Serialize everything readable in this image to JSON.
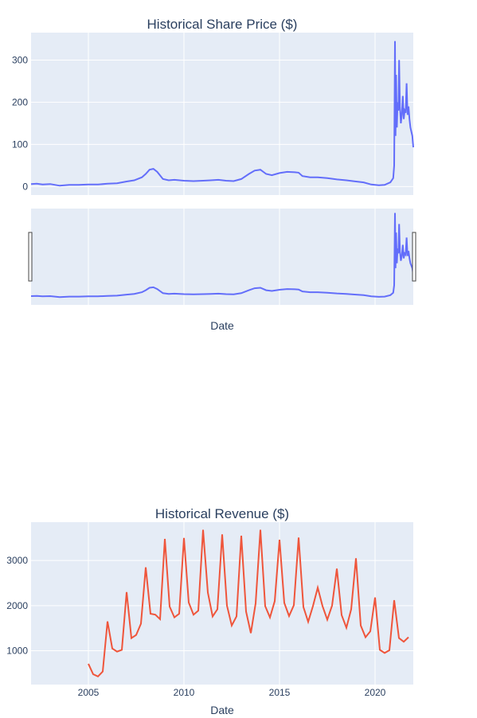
{
  "chart_data": [
    {
      "type": "line",
      "title": "Historical Share Price ($)",
      "xlabel": "Date",
      "ylabel": "",
      "xlim": [
        2002,
        2022
      ],
      "ylim": [
        -20,
        365
      ],
      "x_ticks": [
        2005,
        2010,
        2015,
        2020
      ],
      "y_ticks": [
        0,
        100,
        200,
        300
      ],
      "has_range_slider": true,
      "grid": true,
      "color": "#636efa",
      "series": [
        {
          "x": [
            2002.0,
            2002.3,
            2002.6,
            2003.0,
            2003.5,
            2004.0,
            2004.5,
            2005.0,
            2005.5,
            2006.0,
            2006.5,
            2007.0,
            2007.4,
            2007.8,
            2008.0,
            2008.2,
            2008.4,
            2008.6,
            2008.9,
            2009.2,
            2009.5,
            2010.0,
            2010.5,
            2011.0,
            2011.4,
            2011.8,
            2012.2,
            2012.6,
            2013.0,
            2013.4,
            2013.7,
            2014.0,
            2014.3,
            2014.6,
            2015.0,
            2015.4,
            2015.8,
            2016.0,
            2016.2,
            2016.6,
            2017.0,
            2017.5,
            2018.0,
            2018.5,
            2019.0,
            2019.4,
            2019.8,
            2020.2,
            2020.5,
            2020.8,
            2020.95,
            2021.0,
            2021.04,
            2021.07,
            2021.1,
            2021.14,
            2021.18,
            2021.22,
            2021.26,
            2021.3,
            2021.35,
            2021.4,
            2021.45,
            2021.5,
            2021.55,
            2021.6,
            2021.65,
            2021.7,
            2021.75,
            2021.8,
            2021.85,
            2021.9,
            2021.95,
            2022.0
          ],
          "values": [
            6,
            7,
            5,
            6,
            2,
            4,
            4,
            5,
            5,
            7,
            8,
            12,
            15,
            22,
            30,
            40,
            42,
            35,
            18,
            15,
            16,
            14,
            13,
            14,
            15,
            16,
            14,
            13,
            18,
            30,
            38,
            40,
            30,
            27,
            32,
            35,
            34,
            33,
            25,
            22,
            22,
            20,
            17,
            15,
            12,
            10,
            5,
            3,
            4,
            10,
            20,
            50,
            345,
            120,
            265,
            140,
            200,
            180,
            300,
            190,
            150,
            170,
            215,
            160,
            180,
            175,
            245,
            170,
            190,
            160,
            140,
            130,
            120,
            93
          ]
        }
      ]
    },
    {
      "type": "line",
      "title": "Historical Revenue ($)",
      "xlabel": "Date",
      "ylabel": "",
      "xlim": [
        2002,
        2022
      ],
      "ylim": [
        250,
        3850
      ],
      "x_ticks": [
        2005,
        2010,
        2015,
        2020
      ],
      "y_ticks": [
        1000,
        2000,
        3000
      ],
      "grid": true,
      "color": "#ef553b",
      "series": [
        {
          "x": [
            2005.0,
            2005.25,
            2005.5,
            2005.75,
            2006.0,
            2006.25,
            2006.5,
            2006.75,
            2007.0,
            2007.25,
            2007.5,
            2007.75,
            2008.0,
            2008.25,
            2008.5,
            2008.75,
            2009.0,
            2009.25,
            2009.5,
            2009.75,
            2010.0,
            2010.25,
            2010.5,
            2010.75,
            2011.0,
            2011.25,
            2011.5,
            2011.75,
            2012.0,
            2012.25,
            2012.5,
            2012.75,
            2013.0,
            2013.25,
            2013.5,
            2013.75,
            2014.0,
            2014.25,
            2014.5,
            2014.75,
            2015.0,
            2015.25,
            2015.5,
            2015.75,
            2016.0,
            2016.25,
            2016.5,
            2016.75,
            2017.0,
            2017.25,
            2017.5,
            2017.75,
            2018.0,
            2018.25,
            2018.5,
            2018.75,
            2019.0,
            2019.25,
            2019.5,
            2019.75,
            2020.0,
            2020.25,
            2020.5,
            2020.75,
            2021.0,
            2021.25,
            2021.5,
            2021.75
          ],
          "values": [
            710,
            480,
            430,
            540,
            1650,
            1050,
            980,
            1020,
            2300,
            1280,
            1350,
            1600,
            2850,
            1820,
            1800,
            1700,
            3480,
            1980,
            1740,
            1820,
            3500,
            2070,
            1800,
            1890,
            3680,
            2290,
            1760,
            1920,
            3580,
            2000,
            1560,
            1760,
            3550,
            1870,
            1390,
            2050,
            3680,
            1990,
            1740,
            2100,
            3460,
            2060,
            1770,
            2010,
            3510,
            1970,
            1640,
            1990,
            2400,
            1990,
            1690,
            2000,
            2820,
            1790,
            1510,
            1920,
            3050,
            1560,
            1300,
            1430,
            2180,
            1020,
            950,
            1010,
            2120,
            1280,
            1200,
            1300
          ]
        }
      ]
    }
  ]
}
